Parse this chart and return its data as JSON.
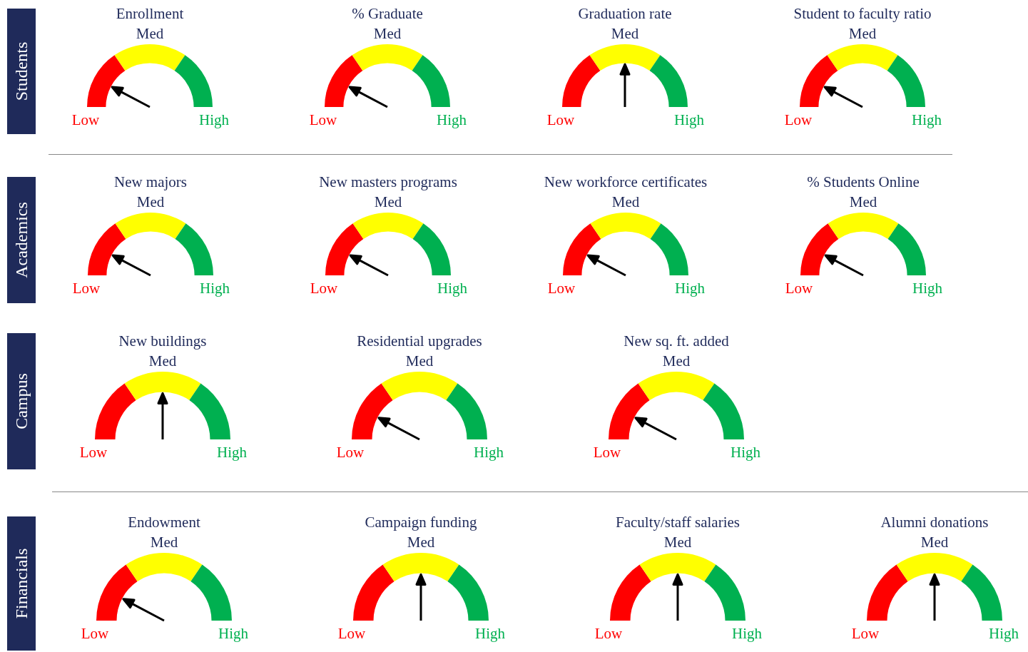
{
  "chart_data": [
    {
      "type": "other",
      "title": "Students"
    },
    {
      "type": "donut",
      "title": "Enrollment",
      "categories": [
        "Low",
        "Med",
        "High"
      ],
      "values": [
        31,
        38,
        31
      ],
      "colors": [
        "#ff0000",
        "#ffff00",
        "#00b050"
      ],
      "needle": "Low"
    },
    {
      "type": "donut",
      "title": "% Graduate",
      "categories": [
        "Low",
        "Med",
        "High"
      ],
      "values": [
        31,
        38,
        31
      ],
      "colors": [
        "#ff0000",
        "#ffff00",
        "#00b050"
      ],
      "needle": "Low"
    },
    {
      "type": "donut",
      "title": "Graduation rate",
      "categories": [
        "Low",
        "Med",
        "High"
      ],
      "values": [
        31,
        38,
        31
      ],
      "colors": [
        "#ff0000",
        "#ffff00",
        "#00b050"
      ],
      "needle": "Med"
    },
    {
      "type": "donut",
      "title": "Student to faculty ratio",
      "categories": [
        "Low",
        "Med",
        "High"
      ],
      "values": [
        31,
        38,
        31
      ],
      "colors": [
        "#ff0000",
        "#ffff00",
        "#00b050"
      ],
      "needle": "Low"
    },
    {
      "type": "other",
      "title": "Academics"
    },
    {
      "type": "donut",
      "title": "New majors",
      "categories": [
        "Low",
        "Med",
        "High"
      ],
      "values": [
        31,
        38,
        31
      ],
      "colors": [
        "#ff0000",
        "#ffff00",
        "#00b050"
      ],
      "needle": "Low"
    },
    {
      "type": "donut",
      "title": "New masters programs",
      "categories": [
        "Low",
        "Med",
        "High"
      ],
      "values": [
        31,
        38,
        31
      ],
      "colors": [
        "#ff0000",
        "#ffff00",
        "#00b050"
      ],
      "needle": "Low"
    },
    {
      "type": "donut",
      "title": "New workforce certificates",
      "categories": [
        "Low",
        "Med",
        "High"
      ],
      "values": [
        31,
        38,
        31
      ],
      "colors": [
        "#ff0000",
        "#ffff00",
        "#00b050"
      ],
      "needle": "Low"
    },
    {
      "type": "donut",
      "title": "% Students Online",
      "categories": [
        "Low",
        "Med",
        "High"
      ],
      "values": [
        31,
        38,
        31
      ],
      "colors": [
        "#ff0000",
        "#ffff00",
        "#00b050"
      ],
      "needle": "Low"
    },
    {
      "type": "other",
      "title": "Campus"
    },
    {
      "type": "donut",
      "title": "New buildings",
      "categories": [
        "Low",
        "Med",
        "High"
      ],
      "values": [
        31,
        38,
        31
      ],
      "colors": [
        "#ff0000",
        "#ffff00",
        "#00b050"
      ],
      "needle": "Med"
    },
    {
      "type": "donut",
      "title": "Residential upgrades",
      "categories": [
        "Low",
        "Med",
        "High"
      ],
      "values": [
        31,
        38,
        31
      ],
      "colors": [
        "#ff0000",
        "#ffff00",
        "#00b050"
      ],
      "needle": "Low"
    },
    {
      "type": "donut",
      "title": "New sq. ft. added",
      "categories": [
        "Low",
        "Med",
        "High"
      ],
      "values": [
        31,
        38,
        31
      ],
      "colors": [
        "#ff0000",
        "#ffff00",
        "#00b050"
      ],
      "needle": "Low"
    },
    {
      "type": "other",
      "title": "Financials"
    },
    {
      "type": "donut",
      "title": "Endowment",
      "categories": [
        "Low",
        "Med",
        "High"
      ],
      "values": [
        31,
        38,
        31
      ],
      "colors": [
        "#ff0000",
        "#ffff00",
        "#00b050"
      ],
      "needle": "Low"
    },
    {
      "type": "donut",
      "title": "Campaign funding",
      "categories": [
        "Low",
        "Med",
        "High"
      ],
      "values": [
        31,
        38,
        31
      ],
      "colors": [
        "#ff0000",
        "#ffff00",
        "#00b050"
      ],
      "needle": "Med"
    },
    {
      "type": "donut",
      "title": "Faculty/staff salaries",
      "categories": [
        "Low",
        "Med",
        "High"
      ],
      "values": [
        31,
        38,
        31
      ],
      "colors": [
        "#ff0000",
        "#ffff00",
        "#00b050"
      ],
      "needle": "Med"
    },
    {
      "type": "donut",
      "title": "Alumni donations",
      "categories": [
        "Low",
        "Med",
        "High"
      ],
      "values": [
        31,
        38,
        31
      ],
      "colors": [
        "#ff0000",
        "#ffff00",
        "#00b050"
      ],
      "needle": "Med"
    }
  ]
}
